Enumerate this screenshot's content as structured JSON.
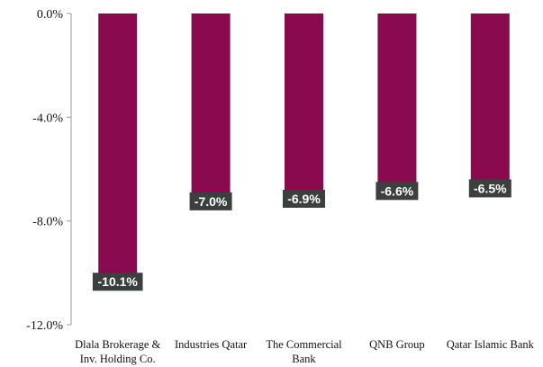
{
  "chart_data": {
    "type": "bar",
    "categories": [
      [
        "Dlala Brokerage &",
        "Inv. Holding Co."
      ],
      [
        "Industries Qatar"
      ],
      [
        "The Commercial",
        "Bank"
      ],
      [
        "QNB Group"
      ],
      [
        "Qatar Islamic Bank"
      ]
    ],
    "values": [
      -10.1,
      -7.0,
      -6.9,
      -6.6,
      -6.5
    ],
    "data_labels": [
      "-10.1%",
      "-7.0%",
      "-6.9%",
      "-6.6%",
      "-6.5%"
    ],
    "ylim": [
      -12.0,
      0.0
    ],
    "yticks": [
      0.0,
      -4.0,
      -8.0,
      -12.0
    ],
    "ytick_labels": [
      "0.0%",
      "-4.0%",
      "-8.0%",
      "-12.0%"
    ],
    "title": "",
    "xlabel": "",
    "ylabel": "",
    "grid": false,
    "colors": {
      "bar": "#8a0a4f",
      "label_bg": "#3b3f3e",
      "label_text": "#ffffff",
      "axis": "#999999"
    }
  }
}
